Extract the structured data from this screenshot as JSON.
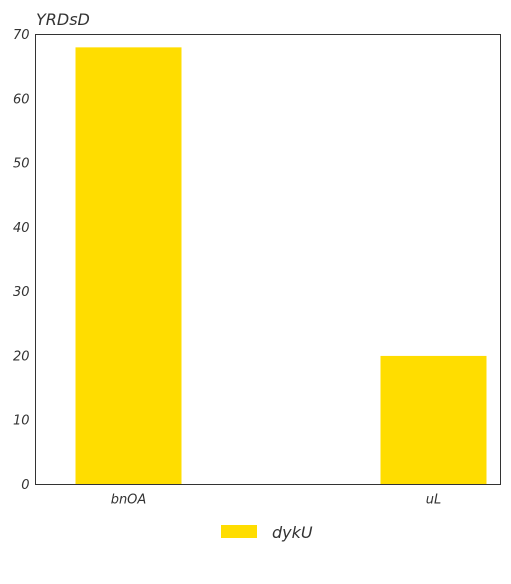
{
  "chart_data": {
    "type": "bar",
    "title": "YRDsD",
    "xlabel": "",
    "ylabel": "",
    "categories": [
      "bnOA",
      "uL"
    ],
    "series": [
      {
        "name": "dykU",
        "values": [
          68,
          20
        ]
      }
    ],
    "ylim": [
      0,
      70
    ],
    "yticks": [
      0,
      10,
      20,
      30,
      40,
      50,
      60,
      70
    ],
    "grid": false,
    "legend_position": "bottom-center",
    "colors": {
      "bar": "#FFDD00",
      "axis": "#333333",
      "text": "#333333"
    }
  }
}
